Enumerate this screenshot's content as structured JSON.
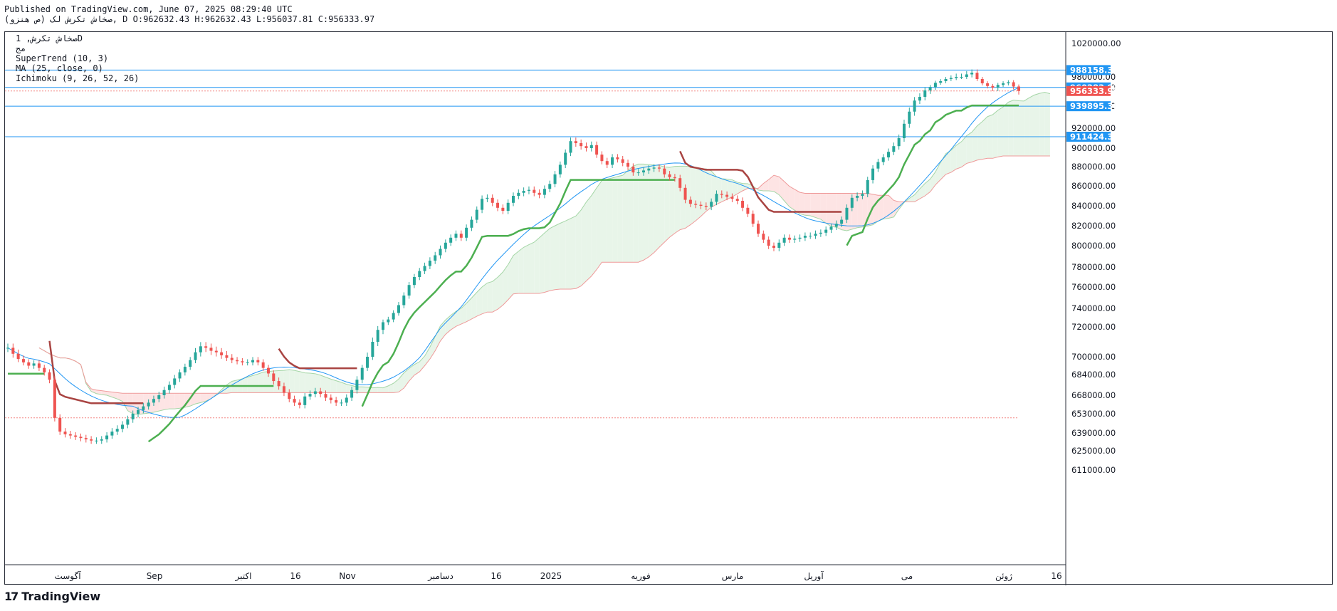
{
  "header": {
    "published": "Published on TradingView.com, June 07, 2025 08:29:40 UTC",
    "ohlc_line": "صخاش تکرش لک (ص هنزو), D O:962632.43 H:962632.43 L:956037.81 C:956333.97"
  },
  "legend": {
    "symbol": "صخاش تکرش, 1D",
    "subtitle": "مج",
    "supertrend": "SuperTrend (10, 3)",
    "ma": "MA (25, close, 0)",
    "ichimoku": "Ichimoku (9, 26, 52, 26)"
  },
  "footer": {
    "brand": "TradingView"
  },
  "colors": {
    "up": "#26a69a",
    "down": "#ef5350",
    "supertrend_up": "#4caf50",
    "supertrend_down": "#a94442",
    "ma": "#2196f3",
    "kumo_bull": "#e8f5e9",
    "kumo_bear": "#fde4e4",
    "hline": "#2196f3"
  },
  "chart_data": {
    "type": "candlestick",
    "y_axis": {
      "ticks": [
        1020000,
        980000,
        960000,
        940000,
        920000,
        900000,
        880000,
        860000,
        840000,
        820000,
        800000,
        780000,
        760000,
        740000,
        720000,
        700000,
        684000,
        668000,
        653000,
        639000,
        625000,
        611000
      ],
      "tick_labels": [
        "1020000.00",
        "980000.00",
        "960000.00",
        "940000.00",
        "920000.00",
        "900000.00",
        "880000.00",
        "860000.00",
        "840000.00",
        "820000.00",
        "800000.00",
        "780000.00",
        "760000.00",
        "740000.00",
        "720000.00",
        "700000.00",
        "684000.00",
        "668000.00",
        "653000.00",
        "639000.00",
        "625000.00",
        "611000.00"
      ]
    },
    "x_axis": {
      "labels": [
        "آگوست",
        "Sep",
        "اکتبر",
        "16",
        "Nov",
        "دسامبر",
        "16",
        "2025",
        "فوریه",
        "مارس",
        "آوریل",
        "می",
        "ژوئن",
        "16"
      ]
    },
    "price_tags": [
      {
        "label": "988158.33",
        "value": 988158.33,
        "color": "#2196f3"
      },
      {
        "label": "960283.93",
        "value": 960283.93,
        "color": "#2196f3"
      },
      {
        "label": "956333.97",
        "value": 956333.97,
        "color": "#ef5350"
      },
      {
        "label": "939895.36",
        "value": 939895.36,
        "color": "#2196f3"
      },
      {
        "label": "911424.32",
        "value": 911424.32,
        "color": "#2196f3"
      }
    ],
    "hlines": [
      988158.33,
      960283.93,
      939895.36,
      911424.32
    ],
    "dotted_lines": [
      {
        "value": 956333.97,
        "color": "#ef5350"
      },
      {
        "value": 650000,
        "color": "#ef5350"
      }
    ],
    "close_series": [
      706000,
      702000,
      698000,
      695000,
      692000,
      694000,
      690000,
      686000,
      680000,
      650000,
      640000,
      638000,
      637000,
      636000,
      635000,
      634000,
      633000,
      633000,
      634000,
      637000,
      640000,
      642000,
      645000,
      649000,
      653000,
      656000,
      659000,
      662000,
      665000,
      668000,
      672000,
      676000,
      681000,
      686000,
      691000,
      697000,
      703000,
      707000,
      706000,
      704000,
      703000,
      701000,
      699000,
      697000,
      696000,
      695000,
      695000,
      697000,
      695000,
      690000,
      685000,
      679000,
      675000,
      670000,
      665000,
      662000,
      660000,
      667000,
      669000,
      671000,
      669000,
      666000,
      664000,
      662000,
      662000,
      666000,
      672000,
      680000,
      690000,
      700000,
      710000,
      718000,
      725000,
      728000,
      735000,
      743000,
      752000,
      762000,
      770000,
      776000,
      781000,
      786000,
      791000,
      797000,
      803000,
      808000,
      812000,
      808000,
      818000,
      826000,
      836000,
      847000,
      848000,
      843000,
      838000,
      835000,
      843000,
      850000,
      853000,
      855000,
      856000,
      853000,
      851000,
      857000,
      862000,
      872000,
      882000,
      895000,
      907000,
      905000,
      902000,
      900000,
      903000,
      893000,
      886000,
      882000,
      890000,
      888000,
      884000,
      880000,
      874000,
      874000,
      876000,
      878000,
      879000,
      878000,
      872000,
      869000,
      868000,
      858000,
      846000,
      842000,
      841000,
      840000,
      839000,
      844000,
      852000,
      851000,
      849000,
      847000,
      845000,
      838000,
      832000,
      822000,
      812000,
      806000,
      800000,
      798000,
      803000,
      808000,
      806000,
      807000,
      808000,
      810000,
      810000,
      812000,
      813000,
      816000,
      819000,
      822000,
      826000,
      838000,
      848000,
      850000,
      852000,
      866000,
      878000,
      885000,
      890000,
      896000,
      902000,
      910000,
      924000,
      935000,
      946000,
      950000,
      957000,
      961000,
      969000,
      972000,
      976000,
      978000,
      980000,
      980000,
      983000,
      985000,
      976000,
      968000,
      963000,
      960000,
      965000,
      968000,
      970000,
      962000,
      956333
    ],
    "volume": []
  }
}
